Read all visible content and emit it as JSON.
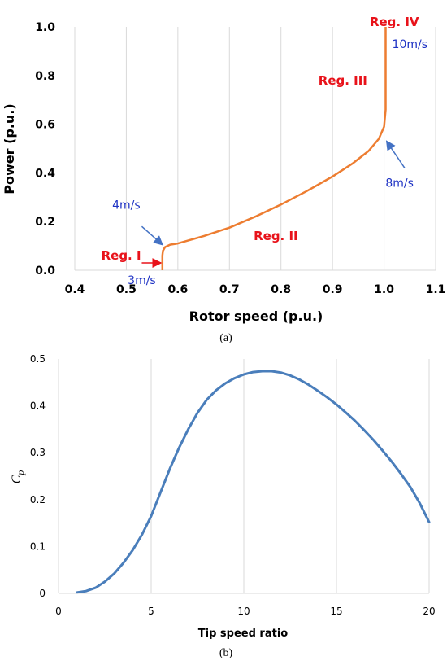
{
  "chart_data": [
    {
      "type": "line",
      "caption": "(a)",
      "xlabel": "Rotor speed (p.u.)",
      "ylabel": "Power (p.u.)",
      "xlim": [
        0.4,
        1.1
      ],
      "ylim": [
        0,
        1.0
      ],
      "xticks": [
        "0.4",
        "0.5",
        "0.6",
        "0.7",
        "0.8",
        "0.9",
        "1.0",
        "1.1"
      ],
      "yticks": [
        "0.0",
        "0.2",
        "0.4",
        "0.6",
        "0.8",
        "1.0"
      ],
      "grid": "vertical",
      "series": [
        {
          "color": "#ed7d31",
          "x": [
            0.57,
            0.57,
            0.571,
            0.575,
            0.585,
            0.6,
            0.65,
            0.7,
            0.75,
            0.8,
            0.85,
            0.9,
            0.94,
            0.97,
            0.99,
            1.0,
            1.003,
            1.003
          ],
          "y": [
            0.0,
            0.06,
            0.08,
            0.095,
            0.105,
            0.11,
            0.14,
            0.175,
            0.22,
            0.27,
            0.325,
            0.385,
            0.44,
            0.49,
            0.54,
            0.59,
            0.66,
            1.0
          ]
        }
      ],
      "annotations": {
        "regions": [
          {
            "text": "Reg. I",
            "x": 0.49,
            "y": 0.06
          },
          {
            "text": "Reg. II",
            "x": 0.79,
            "y": 0.14
          },
          {
            "text": "Reg. III",
            "x": 0.92,
            "y": 0.78
          },
          {
            "text": "Reg. IV",
            "x": 1.02,
            "y": 1.02
          }
        ],
        "wind_speeds": [
          {
            "text": "3m/s",
            "x": 0.53,
            "y": -0.04
          },
          {
            "text": "4m/s",
            "x": 0.5,
            "y": 0.27
          },
          {
            "text": "8m/s",
            "x": 1.03,
            "y": 0.36
          },
          {
            "text": "10m/s",
            "x": 1.05,
            "y": 0.93
          }
        ],
        "arrows": [
          {
            "from": [
              0.53,
              0.03
            ],
            "to": [
              0.567,
              0.03
            ],
            "color": "#e8121a"
          },
          {
            "from": [
              0.53,
              0.18
            ],
            "to": [
              0.57,
              0.105
            ],
            "color": "#4472c4"
          },
          {
            "from": [
              1.04,
              0.42
            ],
            "to": [
              1.005,
              0.53
            ],
            "color": "#4472c4"
          }
        ]
      }
    },
    {
      "type": "line",
      "caption": "(b)",
      "xlabel": "Tip speed ratio",
      "ylabel": "Cp",
      "xlim": [
        0,
        20
      ],
      "ylim": [
        0,
        0.5
      ],
      "xticks": [
        "0",
        "5",
        "10",
        "15",
        "20"
      ],
      "yticks": [
        "0",
        "0.1",
        "0.2",
        "0.3",
        "0.4",
        "0.5"
      ],
      "grid": "vertical",
      "series": [
        {
          "color": "#4a7ebb",
          "x": [
            1,
            1.5,
            2,
            2.5,
            3,
            3.5,
            4,
            4.5,
            5,
            5.5,
            6,
            6.5,
            7,
            7.5,
            8,
            8.5,
            9,
            9.5,
            10,
            10.5,
            11,
            11.5,
            12,
            12.5,
            13,
            13.5,
            14,
            14.5,
            15,
            15.5,
            16,
            16.5,
            17,
            17.5,
            18,
            18.5,
            19,
            19.5,
            20
          ],
          "y": [
            0.002,
            0.005,
            0.012,
            0.025,
            0.042,
            0.065,
            0.092,
            0.125,
            0.165,
            0.215,
            0.265,
            0.31,
            0.35,
            0.385,
            0.413,
            0.433,
            0.448,
            0.459,
            0.467,
            0.472,
            0.474,
            0.474,
            0.471,
            0.465,
            0.456,
            0.445,
            0.432,
            0.418,
            0.403,
            0.386,
            0.368,
            0.348,
            0.327,
            0.304,
            0.28,
            0.254,
            0.226,
            0.192,
            0.152
          ]
        }
      ]
    }
  ]
}
